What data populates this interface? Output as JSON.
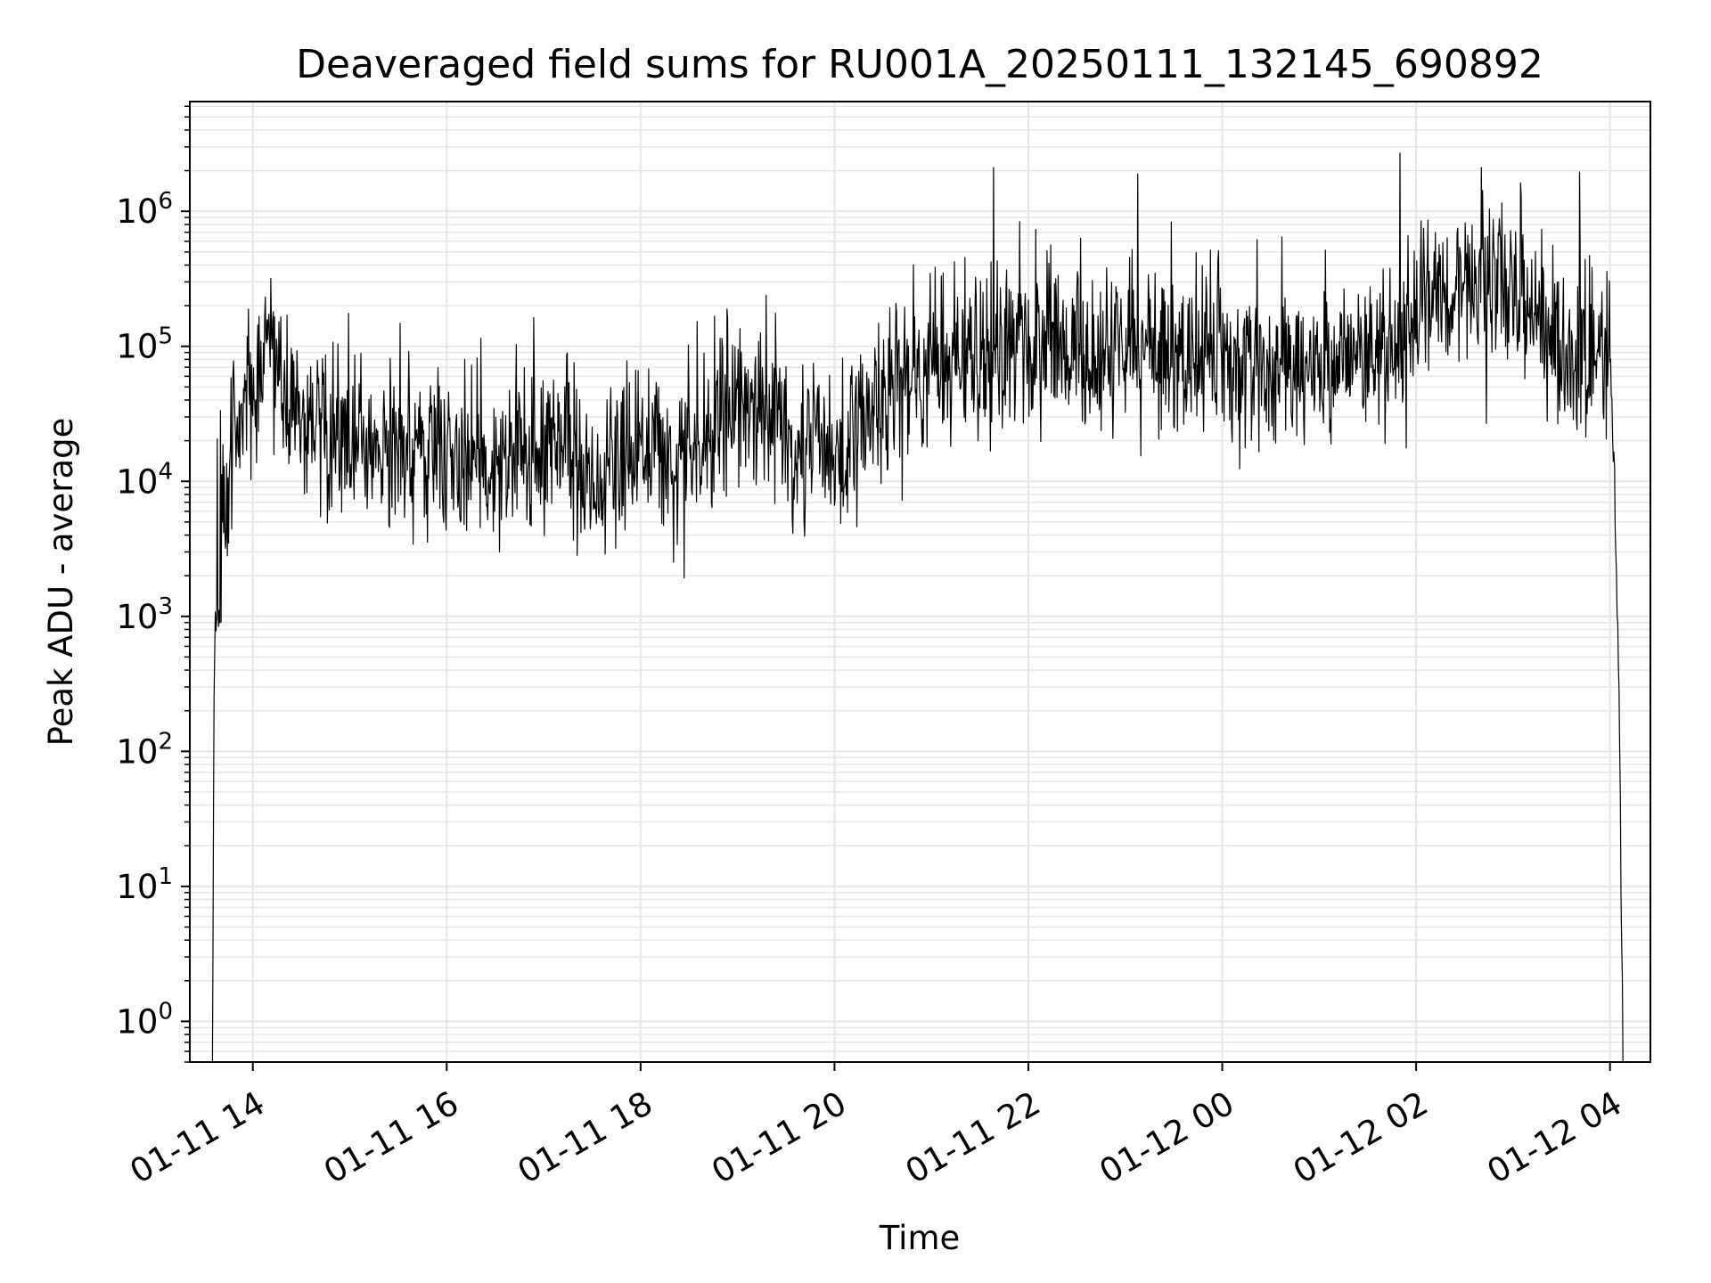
{
  "chart_data": {
    "type": "line",
    "title": "Deaveraged field sums for RU001A_20250111_132145_690892",
    "xlabel": "Time",
    "ylabel": "Peak ADU - average",
    "yscale": "log",
    "grid": true,
    "line_color": "#000000",
    "grid_color": "#e6e6e6",
    "xlim": [
      "2025-01-11T13:21",
      "2025-01-12T04:25"
    ],
    "ylim": [
      0.5,
      6500000
    ],
    "xticks": [
      {
        "value": "2025-01-11T14:00",
        "label": "01-11 14"
      },
      {
        "value": "2025-01-11T16:00",
        "label": "01-11 16"
      },
      {
        "value": "2025-01-11T18:00",
        "label": "01-11 18"
      },
      {
        "value": "2025-01-11T20:00",
        "label": "01-11 20"
      },
      {
        "value": "2025-01-11T22:00",
        "label": "01-11 22"
      },
      {
        "value": "2025-01-12T00:00",
        "label": "01-12 00"
      },
      {
        "value": "2025-01-12T02:00",
        "label": "01-12 02"
      },
      {
        "value": "2025-01-12T04:00",
        "label": "01-12 04"
      }
    ],
    "yticks": [
      {
        "value": 1,
        "base": "10",
        "exp": "0"
      },
      {
        "value": 10,
        "base": "10",
        "exp": "1"
      },
      {
        "value": 100,
        "base": "10",
        "exp": "2"
      },
      {
        "value": 1000,
        "base": "10",
        "exp": "3"
      },
      {
        "value": 10000,
        "base": "10",
        "exp": "4"
      },
      {
        "value": 100000,
        "base": "10",
        "exp": "5"
      },
      {
        "value": 1000000,
        "base": "10",
        "exp": "6"
      }
    ],
    "series": [
      {
        "x": [
          "2025-01-11T13:35",
          "2025-01-11T13:36",
          "2025-01-11T13:38",
          "2025-01-11T13:40",
          "2025-01-11T13:45",
          "2025-01-11T13:50",
          "2025-01-11T13:55",
          "2025-01-11T14:00",
          "2025-01-11T14:05",
          "2025-01-11T14:10",
          "2025-01-11T14:15",
          "2025-01-11T14:20",
          "2025-01-11T14:30",
          "2025-01-11T14:45",
          "2025-01-11T15:00",
          "2025-01-11T15:30",
          "2025-01-11T16:00",
          "2025-01-11T16:30",
          "2025-01-11T17:00",
          "2025-01-11T17:15",
          "2025-01-11T17:30",
          "2025-01-11T17:45",
          "2025-01-11T18:00",
          "2025-01-11T18:15",
          "2025-01-11T18:30",
          "2025-01-11T18:45",
          "2025-01-11T19:00",
          "2025-01-11T19:30",
          "2025-01-11T20:00",
          "2025-01-11T20:30",
          "2025-01-11T21:00",
          "2025-01-11T21:30",
          "2025-01-11T22:00",
          "2025-01-11T22:30",
          "2025-01-11T23:00",
          "2025-01-11T23:30",
          "2025-01-12T00:00",
          "2025-01-12T00:30",
          "2025-01-12T01:00",
          "2025-01-12T01:30",
          "2025-01-12T02:00",
          "2025-01-12T02:30",
          "2025-01-12T03:00",
          "2025-01-12T03:20",
          "2025-01-12T03:40",
          "2025-01-12T04:00",
          "2025-01-12T04:02",
          "2025-01-12T04:04",
          "2025-01-12T04:06",
          "2025-01-12T04:08"
        ],
        "y": [
          0.5,
          300,
          1500,
          5000,
          12000,
          25000,
          40000,
          50000,
          70000,
          90000,
          60000,
          45000,
          30000,
          25000,
          20000,
          18000,
          15000,
          14000,
          16000,
          20000,
          9000,
          14000,
          20000,
          15000,
          12000,
          25000,
          40000,
          25000,
          18000,
          50000,
          70000,
          90000,
          100000,
          95000,
          110000,
          90000,
          75000,
          65000,
          60000,
          80000,
          150000,
          300000,
          250000,
          140000,
          90000,
          80000,
          15000,
          2000,
          100,
          0.5
        ]
      }
    ]
  }
}
